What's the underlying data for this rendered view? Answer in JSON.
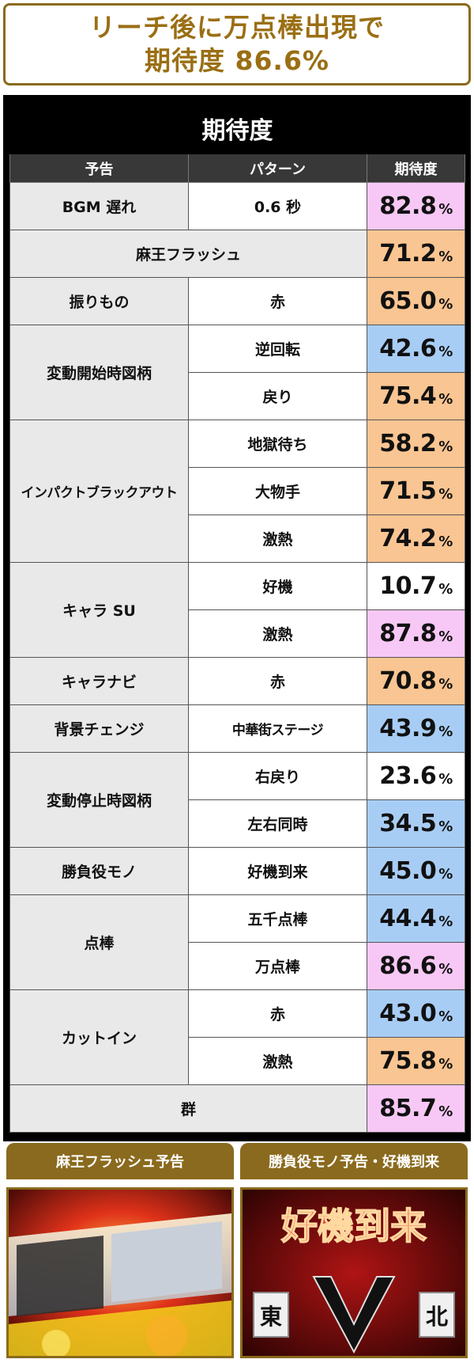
{
  "headline": {
    "line1": "リーチ後に万点棒出現で",
    "line2": "期待度 86.6%"
  },
  "table": {
    "title": "期待度",
    "headers": [
      "予告",
      "パターン",
      "期待度"
    ],
    "pct_symbol": "%",
    "colors": {
      "pink": "#f7c8f5",
      "orange": "#f9c592",
      "blue": "#a8cdf5",
      "white": "#ffffff"
    },
    "rows": [
      {
        "label": "BGM 遅れ",
        "pattern": "0.6 秒",
        "value": "82.8",
        "color": "pink"
      },
      {
        "label": "麻王フラッシュ",
        "pattern": "",
        "value": "71.2",
        "color": "orange"
      },
      {
        "label": "振りもの",
        "pattern": "赤",
        "value": "65.0",
        "color": "orange"
      },
      {
        "label": "変動開始時図柄",
        "pattern": "逆回転",
        "value": "42.6",
        "color": "blue"
      },
      {
        "label": "",
        "pattern": "戻り",
        "value": "75.4",
        "color": "orange"
      },
      {
        "label": "インパクトブラックアウト",
        "pattern": "地獄待ち",
        "value": "58.2",
        "color": "orange"
      },
      {
        "label": "",
        "pattern": "大物手",
        "value": "71.5",
        "color": "orange"
      },
      {
        "label": "",
        "pattern": "激熱",
        "value": "74.2",
        "color": "orange"
      },
      {
        "label": "キャラ SU",
        "pattern": "好機",
        "value": "10.7",
        "color": "white"
      },
      {
        "label": "",
        "pattern": "激熱",
        "value": "87.8",
        "color": "pink"
      },
      {
        "label": "キャラナビ",
        "pattern": "赤",
        "value": "70.8",
        "color": "orange"
      },
      {
        "label": "背景チェンジ",
        "pattern": "中華街ステージ",
        "value": "43.9",
        "color": "blue"
      },
      {
        "label": "変動停止時図柄",
        "pattern": "右戻り",
        "value": "23.6",
        "color": "white"
      },
      {
        "label": "",
        "pattern": "左右同時",
        "value": "34.5",
        "color": "blue"
      },
      {
        "label": "勝負役モノ",
        "pattern": "好機到来",
        "value": "45.0",
        "color": "blue"
      },
      {
        "label": "点棒",
        "pattern": "五千点棒",
        "value": "44.4",
        "color": "blue"
      },
      {
        "label": "",
        "pattern": "万点棒",
        "value": "86.6",
        "color": "pink"
      },
      {
        "label": "カットイン",
        "pattern": "赤",
        "value": "43.0",
        "color": "blue"
      },
      {
        "label": "",
        "pattern": "激熱",
        "value": "75.8",
        "color": "orange"
      },
      {
        "label": "群",
        "pattern": "",
        "value": "85.7",
        "color": "pink"
      }
    ]
  },
  "panels": {
    "left_label": "麻王フラッシュ予告",
    "right_label": "勝負役モノ予告・好機到来",
    "right_image_text": [
      "好機到来",
      "東",
      "北"
    ]
  }
}
